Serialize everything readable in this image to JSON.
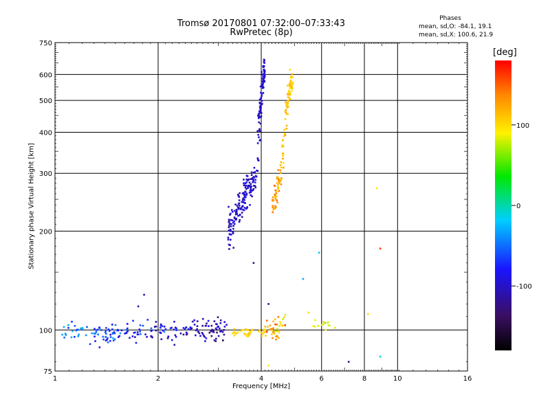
{
  "figure": {
    "title_line1": "Tromsø 20170801 07:32:00–07:33:43",
    "title_line2": "RwPretec (8p)",
    "phase_header": "Phases",
    "phase_o_stats": "mean, sd,O: -84.1, 19.1",
    "phase_x_stats": "mean, sd,X: 100.6, 21.9",
    "colorbar_label": "[deg]",
    "colorbar_ticks": [
      "100",
      "0",
      "-100"
    ],
    "colorbar_tick_values": [
      100,
      0,
      -100
    ],
    "colorbar_range": [
      -180,
      180
    ]
  },
  "chart_data": {
    "type": "scatter",
    "title": "Tromsø 20170801 07:32:00–07:33:43",
    "subtitle": "RwPretec (8p)",
    "xlabel": "Frequency [MHz]",
    "ylabel": "Stationary phase Virtual Height [km]",
    "x_scale": "log",
    "y_scale": "log",
    "xlim": [
      1,
      16
    ],
    "ylim": [
      75,
      750
    ],
    "x_ticks": [
      1,
      2,
      4,
      6,
      8,
      10,
      16
    ],
    "x_tick_labels": [
      "1",
      "2",
      "4",
      "6",
      "8",
      "10",
      "16"
    ],
    "y_ticks": [
      75,
      100,
      200,
      300,
      400,
      500,
      600,
      750
    ],
    "y_tick_labels": [
      "75",
      "100",
      "200",
      "300",
      "400",
      "500",
      "600",
      "750"
    ],
    "grid": true,
    "color_encoding": "phase [deg]",
    "colormap": "rainbow",
    "series": [
      {
        "traces": [
          {
            "x0": 1.05,
            "x1": 1.8,
            "h0": 96,
            "h1": 99,
            "hs": 3,
            "p0": -40,
            "p1": -80,
            "ps": 15,
            "n": 90
          },
          {
            "x0": 1.8,
            "x1": 3.2,
            "h0": 99,
            "h1": 101,
            "hs": 4,
            "p0": -90,
            "p1": -115,
            "ps": 18,
            "n": 110
          },
          {
            "x0": 3.2,
            "x1": 3.9,
            "h0": 200,
            "h1": 300,
            "hs": 14,
            "p0": -105,
            "p1": -95,
            "ps": 10,
            "n": 160
          },
          {
            "x0": 3.9,
            "x1": 4.1,
            "h0": 360,
            "h1": 640,
            "hs": 35,
            "p0": -105,
            "p1": -95,
            "ps": 8,
            "n": 90
          }
        ],
        "points": [
          {
            "x": 1.82,
            "h": 128,
            "p": -100
          },
          {
            "x": 1.75,
            "h": 118,
            "p": -110
          },
          {
            "x": 3.32,
            "h": 178,
            "p": -110
          },
          {
            "x": 3.8,
            "h": 160,
            "p": -130
          },
          {
            "x": 7.2,
            "h": 80,
            "p": -115
          },
          {
            "x": 4.2,
            "h": 120,
            "p": -120
          },
          {
            "x": 1.12,
            "h": 106,
            "p": -70
          }
        ]
      },
      {
        "traces": [
          {
            "x0": 3.3,
            "x1": 4.1,
            "h0": 98,
            "h1": 99,
            "hs": 1.5,
            "p0": 105,
            "p1": 100,
            "ps": 6,
            "n": 40
          },
          {
            "x0": 4.1,
            "x1": 4.7,
            "h0": 100,
            "h1": 104,
            "hs": 4,
            "p0": 120,
            "p1": 95,
            "ps": 20,
            "n": 40
          },
          {
            "x0": 4.3,
            "x1": 4.65,
            "h0": 225,
            "h1": 330,
            "hs": 18,
            "p0": 130,
            "p1": 115,
            "ps": 14,
            "n": 60
          },
          {
            "x0": 4.6,
            "x1": 4.75,
            "h0": 360,
            "h1": 410,
            "hs": 15,
            "p0": 115,
            "p1": 110,
            "ps": 10,
            "n": 12
          },
          {
            "x0": 4.7,
            "x1": 4.95,
            "h0": 450,
            "h1": 600,
            "hs": 25,
            "p0": 112,
            "p1": 105,
            "ps": 8,
            "n": 60
          },
          {
            "x0": 5.6,
            "x1": 6.6,
            "h0": 103,
            "h1": 104,
            "hs": 2,
            "p0": 90,
            "p1": 85,
            "ps": 10,
            "n": 14
          }
        ],
        "points": [
          {
            "x": 4.85,
            "h": 620,
            "p": 100
          },
          {
            "x": 8.7,
            "h": 270,
            "p": 95
          },
          {
            "x": 8.2,
            "h": 112,
            "p": 100
          },
          {
            "x": 5.5,
            "h": 113,
            "p": 100
          },
          {
            "x": 4.2,
            "h": 78,
            "p": 95
          },
          {
            "x": 8.9,
            "h": 177,
            "p": 160
          },
          {
            "x": 5.9,
            "h": 172,
            "p": -20
          },
          {
            "x": 5.3,
            "h": 143,
            "p": -30
          },
          {
            "x": 8.9,
            "h": 83,
            "p": -10
          },
          {
            "x": 4.4,
            "h": 104,
            "p": 160
          }
        ]
      }
    ]
  }
}
